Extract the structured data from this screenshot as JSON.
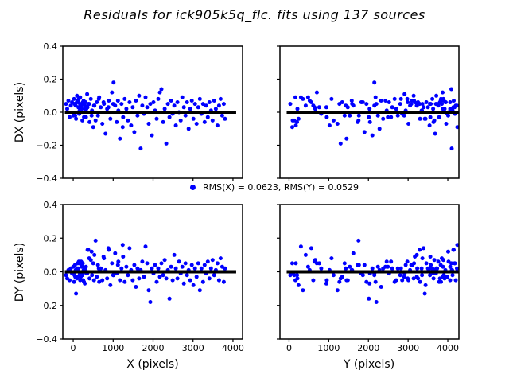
{
  "title": "Residuals for ick905k5q_flc. fits using 137 sources",
  "legend": {
    "label": "RMS(X) = 0.0623, RMS(Y) = 0.0529",
    "marker_color": "#0000ff"
  },
  "chart_data": {
    "type": "scatter",
    "title": "Residuals for ick905k5q_flc.fits using 137 sources",
    "source_count": 137,
    "rms_x": 0.0623,
    "rms_y": 0.0529,
    "ylim": [
      -0.4,
      0.4
    ],
    "yticks": {
      "values": [
        0.4,
        0.2,
        0.0,
        -0.2,
        -0.4
      ],
      "labels": [
        "0.4",
        "0.2",
        "0.0",
        "−0.2",
        "−0.4"
      ]
    },
    "xticks": {
      "values": [
        0,
        1000,
        2000,
        3000,
        4000
      ],
      "labels": [
        "0",
        "1000",
        "2000",
        "3000",
        "4000"
      ]
    },
    "fit_line_y": 0,
    "colors": {
      "marker": "#0000ff",
      "fit_line": "#000000",
      "background": "#ffffff"
    },
    "marker_radius": 2.5,
    "panels": [
      {
        "name": "dx-vs-x",
        "x_index": 0,
        "y_index": 2,
        "ylabel": "DX (pixels)",
        "xlabel": "",
        "xlim": [
          -260,
          4240
        ],
        "line_x": [
          -210,
          4080
        ],
        "show_yticklabels": true,
        "show_xticklabels": false
      },
      {
        "name": "dx-vs-y",
        "x_index": 1,
        "y_index": 2,
        "ylabel": "",
        "xlabel": "",
        "xlim": [
          -230,
          4280
        ],
        "line_x": [
          -60,
          4280
        ],
        "show_yticklabels": false,
        "show_xticklabels": false
      },
      {
        "name": "dy-vs-x",
        "x_index": 0,
        "y_index": 3,
        "ylabel": "DY (pixels)",
        "xlabel": "X (pixels)",
        "xlim": [
          -260,
          4240
        ],
        "line_x": [
          -210,
          4080
        ],
        "show_yticklabels": true,
        "show_xticklabels": true
      },
      {
        "name": "dy-vs-y",
        "x_index": 1,
        "y_index": 3,
        "ylabel": "",
        "xlabel": "Y (pixels)",
        "xlim": [
          -230,
          4280
        ],
        "line_x": [
          -60,
          4280
        ],
        "show_yticklabels": false,
        "show_xticklabels": true
      }
    ],
    "points_format": [
      "X",
      "Y",
      "DX",
      "DY"
    ],
    "points": [
      [
        -180,
        30,
        0.05,
        -0.02
      ],
      [
        -150,
        210,
        0.02,
        -0.04
      ],
      [
        -120,
        520,
        0.07,
        0.01
      ],
      [
        -90,
        950,
        -0.03,
        -0.05
      ],
      [
        -60,
        1430,
        0.04,
        0.02
      ],
      [
        -30,
        1820,
        0.06,
        -0.01
      ],
      [
        0,
        2240,
        -0.02,
        0.03
      ],
      [
        20,
        2660,
        0.08,
        -0.06
      ],
      [
        45,
        3080,
        0.05,
        0.04
      ],
      [
        70,
        3420,
        -0.04,
        -0.13
      ],
      [
        95,
        3710,
        0.1,
        0.02
      ],
      [
        120,
        3950,
        0.06,
        -0.03
      ],
      [
        150,
        4180,
        -0.01,
        0.05
      ],
      [
        175,
        160,
        0.09,
        -0.05
      ],
      [
        200,
        640,
        0.03,
        0.06
      ],
      [
        230,
        1120,
        -0.05,
        -0.02
      ],
      [
        260,
        1580,
        0.07,
        0.01
      ],
      [
        290,
        2030,
        0.02,
        -0.07
      ],
      [
        320,
        2490,
        -0.03,
        0.03
      ],
      [
        350,
        2910,
        0.11,
        -0.01
      ],
      [
        380,
        3290,
        0.05,
        0.13
      ],
      [
        410,
        3640,
        -0.06,
        -0.04
      ],
      [
        440,
        3890,
        0.08,
        0.07
      ],
      [
        470,
        4120,
        0.01,
        -0.02
      ],
      [
        500,
        80,
        -0.09,
        0.05
      ],
      [
        530,
        420,
        0.04,
        0.1
      ],
      [
        560,
        1750,
        -0.05,
        0.185
      ],
      [
        590,
        1340,
        0.06,
        -0.03
      ],
      [
        620,
        1760,
        -0.02,
        0.04
      ],
      [
        650,
        2180,
        0.09,
        -0.06
      ],
      [
        690,
        2600,
        0.03,
        0.02
      ],
      [
        730,
        3010,
        -0.07,
        -0.05
      ],
      [
        770,
        3360,
        0.05,
        0.08
      ],
      [
        810,
        3680,
        -0.13,
        0.01
      ],
      [
        850,
        3920,
        0.02,
        -0.04
      ],
      [
        890,
        4150,
        0.07,
        0.13
      ],
      [
        930,
        240,
        -0.04,
        -0.08
      ],
      [
        970,
        700,
        0.12,
        0.05
      ],
      [
        1010,
        2150,
        0.18,
        -0.02
      ],
      [
        1050,
        1620,
        0.04,
        0.11
      ],
      [
        1090,
        2040,
        -0.06,
        -0.01
      ],
      [
        1130,
        2460,
        0.01,
        0.06
      ],
      [
        1170,
        1450,
        -0.16,
        -0.05
      ],
      [
        1210,
        3230,
        0.05,
        0.02
      ],
      [
        1250,
        3560,
        -0.03,
        0.09
      ],
      [
        1290,
        3830,
        0.08,
        -0.06
      ],
      [
        1330,
        4060,
        0.02,
        0.03
      ],
      [
        1370,
        130,
        -0.05,
        -0.02
      ],
      [
        1410,
        560,
        0.06,
        0.14
      ],
      [
        1450,
        1020,
        -0.08,
        0.01
      ],
      [
        1490,
        1480,
        0.03,
        -0.05
      ],
      [
        1530,
        1900,
        -0.12,
        0.04
      ],
      [
        1570,
        2320,
        0.07,
        -0.09
      ],
      [
        1610,
        2740,
        -0.02,
        0.02
      ],
      [
        1650,
        3140,
        0.1,
        -0.04
      ],
      [
        1690,
        4100,
        -0.22,
        0.01
      ],
      [
        1730,
        3760,
        0.04,
        0.06
      ],
      [
        1770,
        3990,
        -0.01,
        -0.03
      ],
      [
        1810,
        300,
        0.09,
        0.15
      ],
      [
        1850,
        760,
        0.03,
        0.05
      ],
      [
        1890,
        1220,
        -0.07,
        -0.11
      ],
      [
        1930,
        2200,
        0.05,
        -0.18
      ],
      [
        1970,
        2100,
        -0.14,
        0.02
      ],
      [
        2010,
        2520,
        0.06,
        -0.01
      ],
      [
        2050,
        2940,
        0.01,
        0.04
      ],
      [
        2090,
        3300,
        -0.04,
        -0.06
      ],
      [
        2130,
        3610,
        0.08,
        0.02
      ],
      [
        2170,
        3870,
        0.12,
        -0.03
      ],
      [
        2210,
        4090,
        0.14,
        0.05
      ],
      [
        2250,
        200,
        -0.06,
        -0.02
      ],
      [
        2290,
        660,
        0.02,
        0.07
      ],
      [
        2330,
        1300,
        -0.19,
        -0.04
      ],
      [
        2370,
        1590,
        0.05,
        0.01
      ],
      [
        2410,
        2010,
        -0.03,
        -0.16
      ],
      [
        2450,
        2430,
        0.07,
        0.03
      ],
      [
        2490,
        2850,
        -0.01,
        -0.05
      ],
      [
        2530,
        3220,
        0.04,
        0.1
      ],
      [
        2570,
        3540,
        -0.08,
        0.02
      ],
      [
        2610,
        3800,
        0.06,
        -0.04
      ],
      [
        2650,
        4020,
        0.0,
        0.06
      ],
      [
        2690,
        90,
        -0.05,
        -0.01
      ],
      [
        2730,
        480,
        0.09,
        0.03
      ],
      [
        2770,
        940,
        0.03,
        -0.07
      ],
      [
        2810,
        1400,
        -0.02,
        0.05
      ],
      [
        2850,
        1860,
        0.06,
        -0.02
      ],
      [
        2890,
        2280,
        -0.1,
        0.01
      ],
      [
        2930,
        2700,
        0.02,
        -0.05
      ],
      [
        2970,
        3100,
        0.07,
        0.04
      ],
      [
        3010,
        3440,
        -0.04,
        -0.08
      ],
      [
        3050,
        3730,
        0.05,
        0.02
      ],
      [
        3090,
        3960,
        -0.07,
        -0.03
      ],
      [
        3130,
        4170,
        0.03,
        0.05
      ],
      [
        3170,
        350,
        0.08,
        -0.11
      ],
      [
        3210,
        810,
        -0.01,
        0.02
      ],
      [
        3250,
        1270,
        0.05,
        -0.06
      ],
      [
        3290,
        1730,
        -0.06,
        0.04
      ],
      [
        3330,
        2150,
        0.04,
        -0.01
      ],
      [
        3370,
        2570,
        -0.03,
        0.06
      ],
      [
        3410,
        2990,
        0.06,
        -0.04
      ],
      [
        3450,
        3340,
        0.01,
        0.02
      ],
      [
        3490,
        3660,
        -0.05,
        0.07
      ],
      [
        3530,
        3900,
        0.07,
        -0.02
      ],
      [
        3570,
        4110,
        0.02,
        0.01
      ],
      [
        3610,
        170,
        -0.08,
        0.05
      ],
      [
        3650,
        610,
        0.04,
        -0.05
      ],
      [
        3690,
        1070,
        0.08,
        0.08
      ],
      [
        3730,
        1530,
        -0.02,
        0.03
      ],
      [
        3770,
        1950,
        0.05,
        -0.06
      ],
      [
        3800,
        2370,
        -0.04,
        0.02
      ],
      [
        30,
        2800,
        0.05,
        -0.02
      ],
      [
        60,
        3050,
        0.04,
        0.01
      ],
      [
        90,
        3250,
        0.06,
        -0.04
      ],
      [
        130,
        3500,
        0.03,
        0.02
      ],
      [
        170,
        3700,
        0.05,
        -0.01
      ],
      [
        210,
        3880,
        0.02,
        0.03
      ],
      [
        250,
        4060,
        0.06,
        -0.05
      ],
      [
        290,
        4230,
        0.04,
        0.02
      ],
      [
        50,
        2900,
        -0.02,
        -0.03
      ],
      [
        110,
        3150,
        0.07,
        0.05
      ],
      [
        160,
        3350,
        0.01,
        -0.02
      ],
      [
        220,
        3570,
        0.05,
        0.04
      ],
      [
        270,
        3780,
        -0.03,
        -0.06
      ],
      [
        310,
        3940,
        0.06,
        0.01
      ],
      [
        360,
        4140,
        0.03,
        0.13
      ],
      [
        140,
        2980,
        0.08,
        0.06
      ],
      [
        190,
        3220,
        0.04,
        -0.03
      ],
      [
        240,
        3460,
        0.06,
        0.05
      ],
      [
        330,
        3630,
        0.02,
        -0.01
      ],
      [
        400,
        3850,
        0.05,
        0.08
      ],
      [
        460,
        4010,
        -0.02,
        0.12
      ],
      [
        520,
        4200,
        0.04,
        -0.05
      ],
      [
        640,
        2820,
        0.08,
        0.02
      ],
      [
        760,
        3170,
        0.06,
        0.09
      ],
      [
        880,
        3390,
        0.03,
        0.14
      ],
      [
        1000,
        3550,
        0.05,
        -0.02
      ],
      [
        1120,
        3820,
        0.07,
        0.04
      ],
      [
        1240,
        4240,
        -0.09,
        0.16
      ]
    ]
  }
}
